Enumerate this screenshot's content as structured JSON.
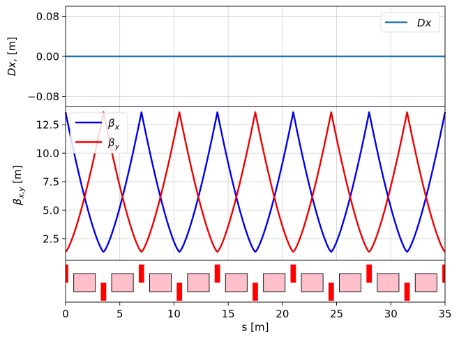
{
  "chart_data": [
    {
      "type": "line",
      "panel": "dispersion",
      "ylabel_main": "Dx",
      "ylabel_unit": ", [m]",
      "yticks": [
        "0.08",
        "0.00",
        "−0.08"
      ],
      "ylim": [
        -0.1,
        0.1
      ],
      "xlim": [
        0,
        35
      ],
      "grid": true,
      "legend_placement": "upper-right",
      "series": [
        {
          "name": "Dx",
          "color": "#1f77b4",
          "x": [
            0,
            35
          ],
          "y": [
            0,
            0
          ]
        }
      ]
    },
    {
      "type": "line",
      "panel": "beta",
      "ylabel_main": "β",
      "ylabel_sub": "x,y",
      "ylabel_unit": " [m]",
      "yticks": [
        "12.5",
        "10.0",
        "7.5",
        "5.0",
        "2.5"
      ],
      "ylim": [
        0.6,
        14.1
      ],
      "xlim": [
        0,
        35
      ],
      "grid": true,
      "legend_placement": "upper-left",
      "period": 7,
      "beta_max": 13.6,
      "beta_min": 1.35,
      "series": [
        {
          "name": "βx",
          "main": "β",
          "sub": "x",
          "color": "#0000ee",
          "peaks_at": [
            0,
            7,
            14,
            21,
            28,
            35
          ],
          "troughs_at": [
            3.5,
            10.5,
            17.5,
            24.5,
            31.5
          ]
        },
        {
          "name": "βy",
          "main": "β",
          "sub": "y",
          "color": "#ee0000",
          "peaks_at": [
            3.5,
            10.5,
            17.5,
            24.5,
            31.5
          ],
          "troughs_at": [
            0,
            7,
            14,
            21,
            28,
            35
          ]
        }
      ]
    },
    {
      "type": "lattice",
      "panel": "lattice",
      "xlabel": "s [m]",
      "xticks": [
        "0",
        "5",
        "10",
        "15",
        "20",
        "25",
        "30",
        "35"
      ],
      "xlim": [
        0,
        35
      ],
      "quad_focusing_at": [
        0,
        7,
        14,
        21,
        28,
        35
      ],
      "quad_defocusing_at": [
        3.5,
        10.5,
        17.5,
        24.5,
        31.5
      ],
      "quad_length": 0.5,
      "dipole_centers": [
        1.75,
        5.25,
        8.75,
        12.25,
        15.75,
        19.25,
        22.75,
        26.25,
        29.75,
        33.25
      ],
      "dipole_length": 2.0,
      "quad_color": "#ff0000",
      "dipole_color": "#ffc0cb"
    }
  ]
}
